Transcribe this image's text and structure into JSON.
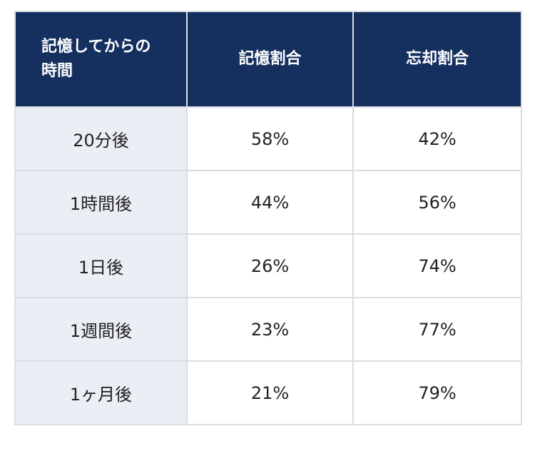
{
  "table": {
    "headers": [
      "記憶してからの時間",
      "記憶割合",
      "忘却割合"
    ],
    "rows": [
      [
        "20分後",
        "58%",
        "42%"
      ],
      [
        "1時間後",
        "44%",
        "56%"
      ],
      [
        "1日後",
        "26%",
        "74%"
      ],
      [
        "1週間後",
        "23%",
        "77%"
      ],
      [
        "1ヶ月後",
        "21%",
        "79%"
      ]
    ]
  },
  "colors": {
    "header_bg": "#15305f",
    "header_text": "#ffffff",
    "first_col_bg": "#ebeef4",
    "grid": "#d9dde3"
  }
}
